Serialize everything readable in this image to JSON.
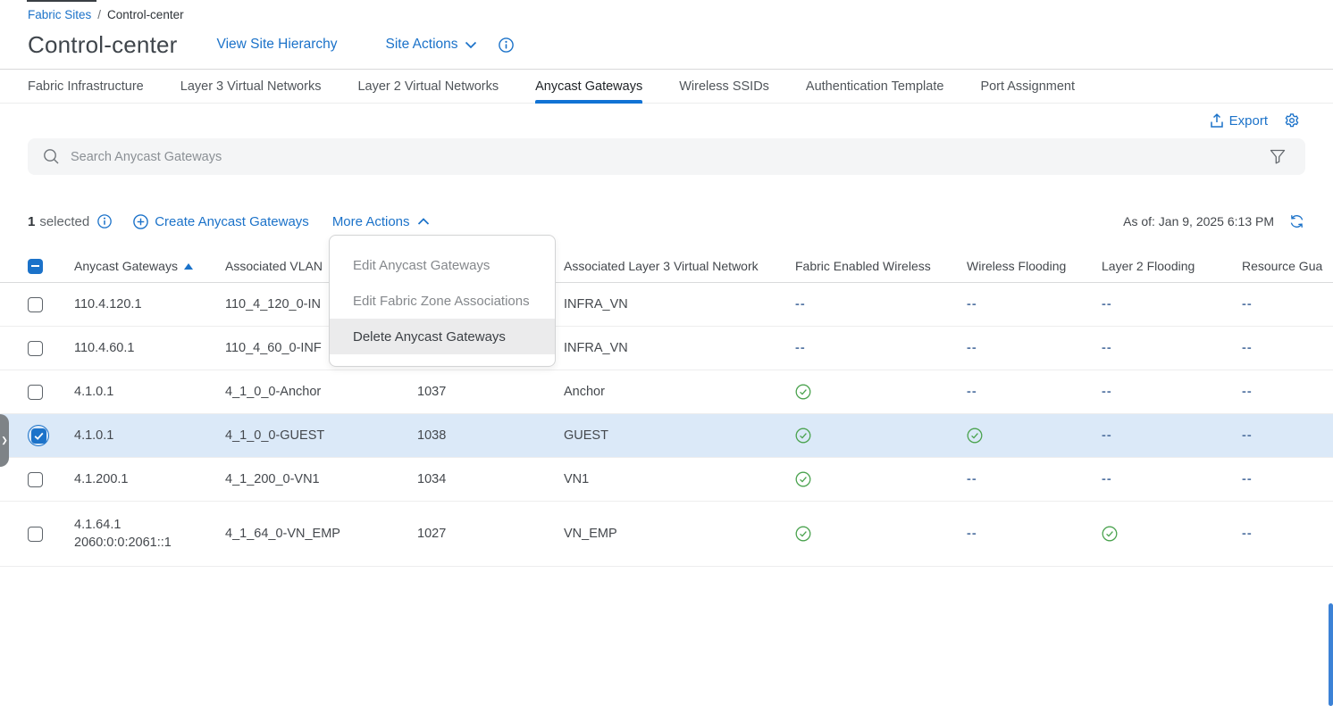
{
  "colors": {
    "accent": "#1b72c9",
    "tab_underline": "#1173d4",
    "selected_row_bg": "#dbe9f8",
    "check_green": "#4ba34f",
    "dash_blue": "#5a7aa6"
  },
  "breadcrumb": {
    "link": "Fabric Sites",
    "separator": "/",
    "current": "Control-center"
  },
  "header": {
    "title": "Control-center",
    "view_site_hierarchy_label": "View Site Hierarchy",
    "site_actions_label": "Site Actions"
  },
  "tabs": {
    "items": [
      {
        "label": "Fabric Infrastructure",
        "active": false
      },
      {
        "label": "Layer 3 Virtual Networks",
        "active": false
      },
      {
        "label": "Layer 2 Virtual Networks",
        "active": false
      },
      {
        "label": "Anycast Gateways",
        "active": true
      },
      {
        "label": "Wireless SSIDs",
        "active": false
      },
      {
        "label": "Authentication Template",
        "active": false
      },
      {
        "label": "Port Assignment",
        "active": false
      }
    ]
  },
  "toolbar": {
    "export_label": "Export"
  },
  "search": {
    "placeholder": "Search Anycast Gateways"
  },
  "actions_bar": {
    "selected_count": "1",
    "selected_label": "selected",
    "create_label": "Create Anycast Gateways",
    "more_actions_label": "More Actions",
    "as_of": "As of: Jan 9, 2025 6:13 PM"
  },
  "menu": {
    "items": [
      {
        "label": "Edit Anycast Gateways",
        "highlighted": false
      },
      {
        "label": "Edit Fabric Zone Associations",
        "highlighted": false
      },
      {
        "label": "Delete Anycast Gateways",
        "highlighted": true
      }
    ]
  },
  "table": {
    "sort": {
      "column": "Anycast Gateways",
      "direction": "asc"
    },
    "columns": [
      {
        "id": "gateway",
        "label": "Anycast Gateways",
        "sorted": true
      },
      {
        "id": "vlan_name",
        "label": "Associated VLAN",
        "sorted": false
      },
      {
        "id": "vlan_id",
        "label": "",
        "sorted": false
      },
      {
        "id": "l3vn",
        "label": "Associated Layer 3 Virtual Network",
        "sorted": false
      },
      {
        "id": "few",
        "label": "Fabric Enabled Wireless",
        "sorted": false
      },
      {
        "id": "wf",
        "label": "Wireless Flooding",
        "sorted": false
      },
      {
        "id": "l2f",
        "label": "Layer 2 Flooding",
        "sorted": false
      },
      {
        "id": "rg",
        "label": "Resource Gua",
        "sorted": false
      }
    ],
    "rows": [
      {
        "selected": false,
        "gateway": [
          "110.4.120.1"
        ],
        "vlan_name": "110_4_120_0-IN",
        "vlan_id": "",
        "l3vn": "INFRA_VN",
        "few": "--",
        "wf": "--",
        "l2f": "--",
        "rg": "--"
      },
      {
        "selected": false,
        "gateway": [
          "110.4.60.1"
        ],
        "vlan_name": "110_4_60_0-INF",
        "vlan_id": "",
        "l3vn": "INFRA_VN",
        "few": "--",
        "wf": "--",
        "l2f": "--",
        "rg": "--"
      },
      {
        "selected": false,
        "gateway": [
          "4.1.0.1"
        ],
        "vlan_name": "4_1_0_0-Anchor",
        "vlan_id": "1037",
        "l3vn": "Anchor",
        "few": "check",
        "wf": "--",
        "l2f": "--",
        "rg": "--"
      },
      {
        "selected": true,
        "gateway": [
          "4.1.0.1"
        ],
        "vlan_name": "4_1_0_0-GUEST",
        "vlan_id": "1038",
        "l3vn": "GUEST",
        "few": "check",
        "wf": "check",
        "l2f": "--",
        "rg": "--"
      },
      {
        "selected": false,
        "gateway": [
          "4.1.200.1"
        ],
        "vlan_name": "4_1_200_0-VN1",
        "vlan_id": "1034",
        "l3vn": "VN1",
        "few": "check",
        "wf": "--",
        "l2f": "--",
        "rg": "--"
      },
      {
        "selected": false,
        "gateway": [
          "4.1.64.1",
          "2060:0:0:2061::1"
        ],
        "vlan_name": "4_1_64_0-VN_EMP",
        "vlan_id": "1027",
        "l3vn": "VN_EMP",
        "few": "check",
        "wf": "--",
        "l2f": "check",
        "rg": "--"
      }
    ]
  }
}
